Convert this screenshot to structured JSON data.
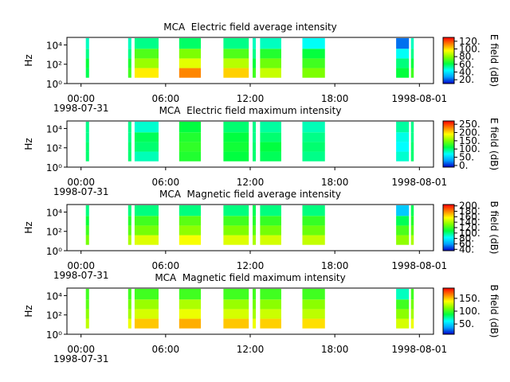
{
  "chart_data": [
    {
      "type": "spectrogram",
      "title": "MCA  Electric field average intensity",
      "ylabel": "Hz",
      "colorbar_label": "E field (dB)",
      "xlim": [
        -1,
        25
      ],
      "xticks": [
        {
          "value": 0,
          "label": "00:00\n1998-07-31"
        },
        {
          "value": 6,
          "label": "06:00"
        },
        {
          "value": 12,
          "label": "12:00"
        },
        {
          "value": 18,
          "label": "18:00"
        },
        {
          "value": 24,
          "label": "1998-08-01"
        }
      ],
      "ylim": [
        1,
        60000
      ],
      "log_y": true,
      "yticks": [
        {
          "value": 1,
          "label": "10⁰"
        },
        {
          "value": 100,
          "label": "10²"
        },
        {
          "value": 10000,
          "label": "10⁴"
        }
      ],
      "zlim": [
        10,
        130
      ],
      "zticks": [
        {
          "value": 20,
          "label": "20."
        },
        {
          "value": 40,
          "label": "40."
        },
        {
          "value": 60,
          "label": "60."
        },
        {
          "value": 80,
          "label": "80."
        },
        {
          "value": 100,
          "label": "100."
        },
        {
          "value": 120,
          "label": "120."
        }
      ],
      "colormap": [
        "#0000c8",
        "#00a0ff",
        "#00ffff",
        "#00ff40",
        "#80ff00",
        "#ffff00",
        "#ff8000",
        "#ff0000"
      ],
      "freq_bins": [
        4,
        40,
        400,
        4000,
        50000
      ],
      "segments": [
        {
          "start": 0.34,
          "end": 0.57,
          "z": [
            60,
            62,
            55,
            50
          ]
        },
        {
          "start": 3.34,
          "end": 3.57,
          "z": [
            70,
            65,
            55,
            50
          ]
        },
        {
          "start": 3.8,
          "end": 5.5,
          "z": [
            98,
            82,
            72,
            55
          ]
        },
        {
          "start": 6.96,
          "end": 8.5,
          "z": [
            112,
            92,
            78,
            58
          ]
        },
        {
          "start": 10.1,
          "end": 11.9,
          "z": [
            102,
            86,
            72,
            55
          ]
        },
        {
          "start": 12.17,
          "end": 12.4,
          "z": [
            70,
            62,
            55,
            50
          ]
        },
        {
          "start": 12.7,
          "end": 14.2,
          "z": [
            88,
            76,
            66,
            50
          ]
        },
        {
          "start": 15.7,
          "end": 17.3,
          "z": [
            78,
            70,
            62,
            45
          ]
        },
        {
          "start": 22.35,
          "end": 23.26,
          "z": [
            62,
            56,
            45,
            22
          ]
        },
        {
          "start": 23.4,
          "end": 23.6,
          "z": [
            70,
            62,
            55,
            50
          ]
        }
      ]
    },
    {
      "type": "spectrogram",
      "title": "MCA  Electric field maximum intensity",
      "ylabel": "Hz",
      "colorbar_label": "E field (dB)",
      "xlim": [
        -1,
        25
      ],
      "xticks": [
        {
          "value": 0,
          "label": "00:00\n1998-07-31"
        },
        {
          "value": 6,
          "label": "06:00"
        },
        {
          "value": 12,
          "label": "12:00"
        },
        {
          "value": 18,
          "label": "18:00"
        },
        {
          "value": 24,
          "label": "1998-08-01"
        }
      ],
      "ylim": [
        1,
        60000
      ],
      "log_y": true,
      "yticks": [
        {
          "value": 1,
          "label": "10⁰"
        },
        {
          "value": 100,
          "label": "10²"
        },
        {
          "value": 10000,
          "label": "10⁴"
        }
      ],
      "zlim": [
        -10,
        270
      ],
      "zticks": [
        {
          "value": 0,
          "label": "0."
        },
        {
          "value": 50,
          "label": "50."
        },
        {
          "value": 100,
          "label": "100."
        },
        {
          "value": 150,
          "label": "150."
        },
        {
          "value": 200,
          "label": "200."
        },
        {
          "value": 250,
          "label": "250."
        }
      ],
      "colormap": [
        "#0000c8",
        "#00a0ff",
        "#00ffff",
        "#00ff40",
        "#80ff00",
        "#ffff00",
        "#ff8000",
        "#ff0000"
      ],
      "freq_bins": [
        4,
        40,
        400,
        4000,
        50000
      ],
      "segments": [
        {
          "start": 0.34,
          "end": 0.57,
          "z": [
            100,
            100,
            95,
            95
          ]
        },
        {
          "start": 3.34,
          "end": 3.57,
          "z": [
            100,
            100,
            95,
            95
          ]
        },
        {
          "start": 3.8,
          "end": 5.5,
          "z": [
            85,
            100,
            105,
            80
          ]
        },
        {
          "start": 6.96,
          "end": 8.5,
          "z": [
            120,
            125,
            120,
            110
          ]
        },
        {
          "start": 10.1,
          "end": 11.9,
          "z": [
            110,
            115,
            110,
            100
          ]
        },
        {
          "start": 12.17,
          "end": 12.4,
          "z": [
            100,
            100,
            95,
            95
          ]
        },
        {
          "start": 12.7,
          "end": 14.2,
          "z": [
            105,
            110,
            100,
            90
          ]
        },
        {
          "start": 15.7,
          "end": 17.3,
          "z": [
            95,
            100,
            95,
            85
          ]
        },
        {
          "start": 22.35,
          "end": 23.26,
          "z": [
            80,
            70,
            75,
            90
          ]
        },
        {
          "start": 23.4,
          "end": 23.6,
          "z": [
            100,
            100,
            95,
            95
          ]
        }
      ]
    },
    {
      "type": "spectrogram",
      "title": "MCA  Magnetic field average intensity",
      "ylabel": "Hz",
      "colorbar_label": "B field (dB)",
      "xlim": [
        -1,
        25
      ],
      "xticks": [
        {
          "value": 0,
          "label": "00:00\n1998-07-31"
        },
        {
          "value": 6,
          "label": "06:00"
        },
        {
          "value": 12,
          "label": "12:00"
        },
        {
          "value": 18,
          "label": "18:00"
        },
        {
          "value": 24,
          "label": "1998-08-01"
        }
      ],
      "ylim": [
        1,
        60000
      ],
      "log_y": true,
      "yticks": [
        {
          "value": 1,
          "label": "10⁰"
        },
        {
          "value": 100,
          "label": "10²"
        },
        {
          "value": 10000,
          "label": "10⁴"
        }
      ],
      "zlim": [
        35,
        205
      ],
      "zticks": [
        {
          "value": 40,
          "label": "40."
        },
        {
          "value": 60,
          "label": "60."
        },
        {
          "value": 80,
          "label": "80."
        },
        {
          "value": 100,
          "label": "100."
        },
        {
          "value": 120,
          "label": "120."
        },
        {
          "value": 140,
          "label": "140."
        },
        {
          "value": 160,
          "label": "160."
        },
        {
          "value": 180,
          "label": "180."
        },
        {
          "value": 200,
          "label": "200."
        }
      ],
      "colormap": [
        "#0000c8",
        "#00a0ff",
        "#00ffff",
        "#00ff40",
        "#80ff00",
        "#ffff00",
        "#ff8000",
        "#ff0000"
      ],
      "freq_bins": [
        4,
        40,
        400,
        4000,
        50000
      ],
      "segments": [
        {
          "start": 0.34,
          "end": 0.57,
          "z": [
            130,
            120,
            110,
            100
          ]
        },
        {
          "start": 3.34,
          "end": 3.57,
          "z": [
            140,
            125,
            115,
            100
          ]
        },
        {
          "start": 3.8,
          "end": 5.5,
          "z": [
            150,
            130,
            120,
            100
          ]
        },
        {
          "start": 6.96,
          "end": 8.5,
          "z": [
            155,
            135,
            125,
            100
          ]
        },
        {
          "start": 10.1,
          "end": 11.9,
          "z": [
            150,
            132,
            120,
            100
          ]
        },
        {
          "start": 12.17,
          "end": 12.4,
          "z": [
            140,
            125,
            115,
            105
          ]
        },
        {
          "start": 12.7,
          "end": 14.2,
          "z": [
            148,
            130,
            118,
            100
          ]
        },
        {
          "start": 15.7,
          "end": 17.3,
          "z": [
            145,
            128,
            118,
            100
          ]
        },
        {
          "start": 22.35,
          "end": 23.26,
          "z": [
            135,
            122,
            105,
            70
          ]
        },
        {
          "start": 23.4,
          "end": 23.6,
          "z": [
            140,
            125,
            115,
            105
          ]
        }
      ]
    },
    {
      "type": "spectrogram",
      "title": "MCA  Magnetic field maximum intensity",
      "ylabel": "Hz",
      "colorbar_label": "B field (dB)",
      "xlim": [
        -1,
        25
      ],
      "xticks": [
        {
          "value": 0,
          "label": "00:00\n1998-07-31"
        },
        {
          "value": 6,
          "label": "06:00"
        },
        {
          "value": 12,
          "label": "12:00"
        },
        {
          "value": 18,
          "label": "18:00"
        },
        {
          "value": 24,
          "label": "1998-08-01"
        }
      ],
      "ylim": [
        1,
        60000
      ],
      "log_y": true,
      "yticks": [
        {
          "value": 1,
          "label": "10⁰"
        },
        {
          "value": 100,
          "label": "10²"
        },
        {
          "value": 10000,
          "label": "10⁴"
        }
      ],
      "zlim": [
        10,
        190
      ],
      "zticks": [
        {
          "value": 50,
          "label": "50."
        },
        {
          "value": 100,
          "label": "100."
        },
        {
          "value": 150,
          "label": "150."
        }
      ],
      "colormap": [
        "#0000c8",
        "#00a0ff",
        "#00ffff",
        "#00ff40",
        "#80ff00",
        "#ffff00",
        "#ff8000",
        "#ff0000"
      ],
      "freq_bins": [
        4,
        40,
        400,
        4000,
        50000
      ],
      "segments": [
        {
          "start": 0.34,
          "end": 0.57,
          "z": [
            125,
            115,
            105,
            100
          ]
        },
        {
          "start": 3.34,
          "end": 3.57,
          "z": [
            135,
            120,
            110,
            100
          ]
        },
        {
          "start": 3.8,
          "end": 5.5,
          "z": [
            150,
            130,
            118,
            100
          ]
        },
        {
          "start": 6.96,
          "end": 8.5,
          "z": [
            155,
            135,
            122,
            100
          ]
        },
        {
          "start": 10.1,
          "end": 11.9,
          "z": [
            150,
            130,
            118,
            100
          ]
        },
        {
          "start": 12.17,
          "end": 12.4,
          "z": [
            135,
            120,
            110,
            100
          ]
        },
        {
          "start": 12.7,
          "end": 14.2,
          "z": [
            148,
            128,
            115,
            100
          ]
        },
        {
          "start": 15.7,
          "end": 17.3,
          "z": [
            145,
            125,
            115,
            100
          ]
        },
        {
          "start": 22.35,
          "end": 23.26,
          "z": [
            130,
            115,
            100,
            70
          ]
        },
        {
          "start": 23.4,
          "end": 23.6,
          "z": [
            135,
            120,
            110,
            100
          ]
        }
      ]
    }
  ]
}
